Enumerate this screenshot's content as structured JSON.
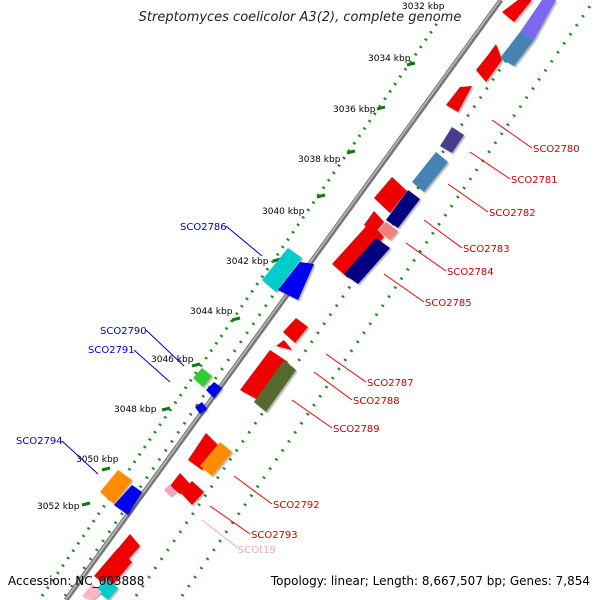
{
  "title": "Streptomyces coelicolor A3(2), complete genome",
  "accession_label": "Accession: NC_003888",
  "summary_label": "Topology: linear; Length: 8,667,507 bp; Genes: 7,854",
  "colors": {
    "backbone": "#8a8a8a",
    "tick_dots": "#1a8a1a",
    "forward_label": "#0000cc",
    "reverse_label": "#cc0000",
    "rna_label": "#f4a6c0"
  },
  "scale_labels": [
    "3032 kbp",
    "3034 kbp",
    "3036 kbp",
    "3038 kbp",
    "3040 kbp",
    "3042 kbp",
    "3044 kbp",
    "3046 kbp",
    "3048 kbp",
    "3050 kbp",
    "3052 kbp"
  ],
  "gene_labels": {
    "SCO2780": "SCO2780",
    "SCO2781": "SCO2781",
    "SCO2782": "SCO2782",
    "SCO2783": "SCO2783",
    "SCO2784": "SCO2784",
    "SCO2785": "SCO2785",
    "SCO2786": "SCO2786",
    "SCO2787": "SCO2787",
    "SCO2788": "SCO2788",
    "SCO2789": "SCO2789",
    "SCO2790": "SCO2790",
    "SCO2791": "SCO2791",
    "SCO2792": "SCO2792",
    "SCO2793": "SCO2793",
    "SCO2794": "SCO2794",
    "SCOt19": "SCOt19"
  }
}
